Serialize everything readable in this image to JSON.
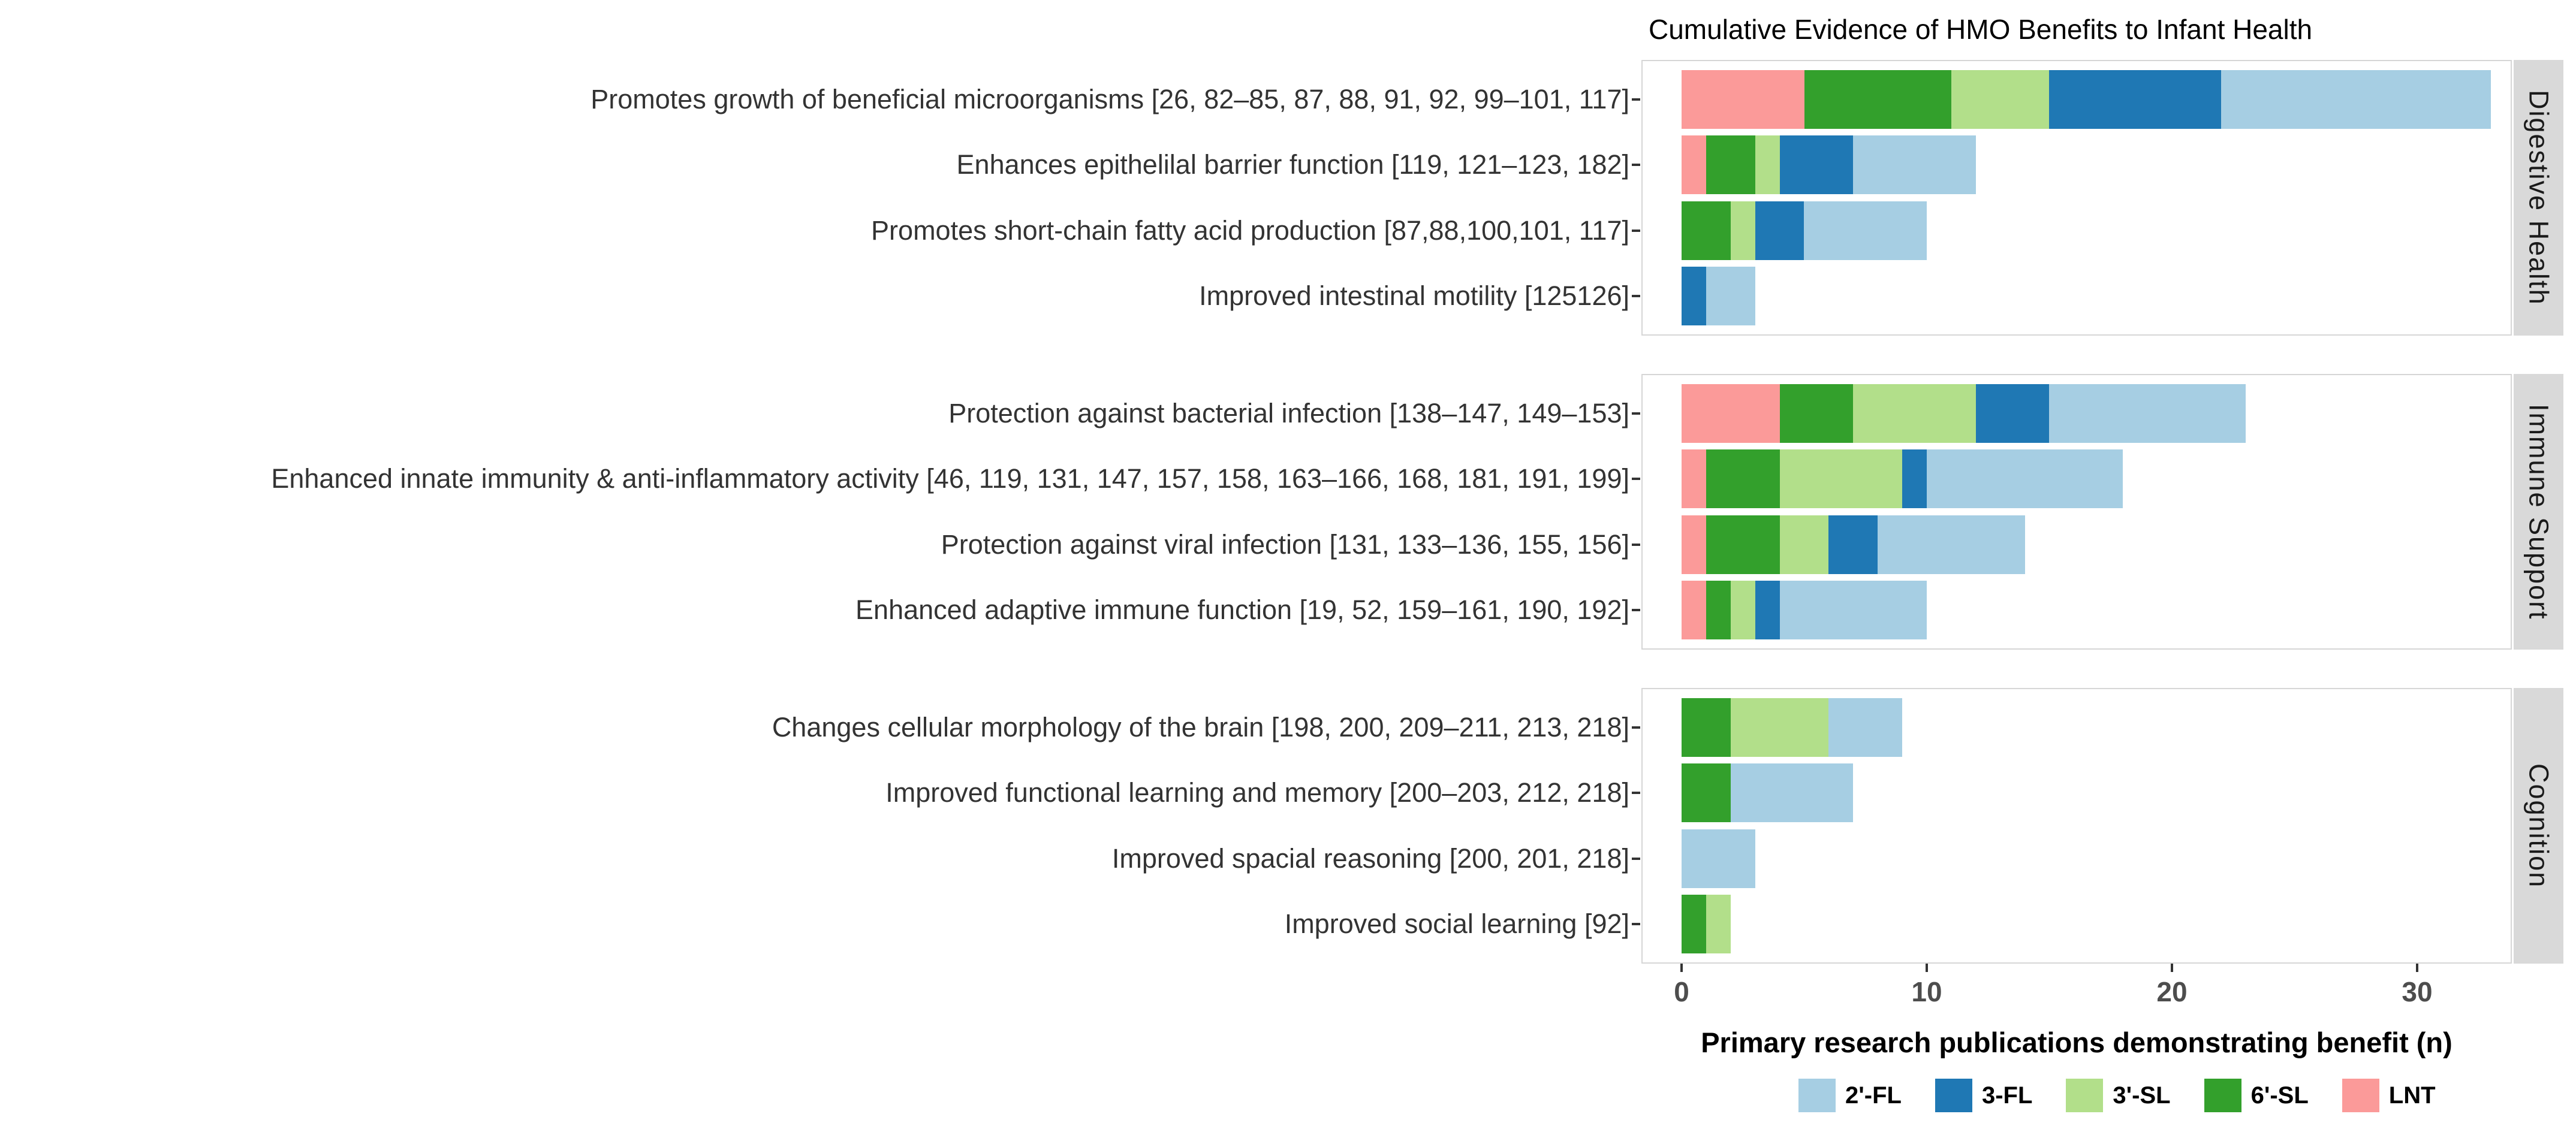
{
  "title": "Cumulative Evidence of HMO Benefits to Infant Health",
  "chart_data": {
    "type": "bar",
    "orientation": "horizontal",
    "stacked": true,
    "title": "Cumulative Evidence of HMO Benefits to Infant Health",
    "xlabel": "Primary research publications demonstrating benefit (n)",
    "ylabel": "",
    "xticks": [
      0,
      10,
      20,
      30
    ],
    "xlim": [
      0,
      33.9
    ],
    "grid": false,
    "legend_position": "bottom",
    "legend": [
      {
        "label": "2'-FL",
        "color": "#A6CEE3"
      },
      {
        "label": "3-FL",
        "color": "#1F78B4"
      },
      {
        "label": "3'-SL",
        "color": "#B2DF8A"
      },
      {
        "label": "6'-SL",
        "color": "#33A02C"
      },
      {
        "label": "LNT",
        "color": "#FB9A99"
      }
    ],
    "stack_order_left_to_right": [
      "LNT",
      "6'-SL",
      "3'-SL",
      "3-FL",
      "2'-FL"
    ],
    "colors": {
      "2'-FL": "#A6CEE3",
      "3-FL": "#1F78B4",
      "3'-SL": "#B2DF8A",
      "6'-SL": "#33A02C",
      "LNT": "#FB9A99"
    },
    "panels": [
      {
        "facet": "Digestive Health",
        "rows": [
          {
            "label": "Promotes growth of beneficial microorganisms [26, 82–85, 87, 88, 91, 92, 99–101, 117]",
            "values": {
              "LNT": 5,
              "6'-SL": 6,
              "3'-SL": 4,
              "3-FL": 7,
              "2'-FL": 11
            },
            "total": 33
          },
          {
            "label": "Enhances epithelilal barrier function [119, 121–123, 182]",
            "values": {
              "LNT": 1,
              "6'-SL": 2,
              "3'-SL": 1,
              "3-FL": 3,
              "2'-FL": 5
            },
            "total": 12
          },
          {
            "label": "Promotes short-chain fatty acid production [87,88,100,101, 117]",
            "values": {
              "LNT": 0,
              "6'-SL": 2,
              "3'-SL": 1,
              "3-FL": 2,
              "2'-FL": 5
            },
            "total": 10
          },
          {
            "label": "Improved intestinal motility [125126]",
            "values": {
              "LNT": 0,
              "6'-SL": 0,
              "3'-SL": 0,
              "3-FL": 1,
              "2'-FL": 2
            },
            "total": 3
          }
        ]
      },
      {
        "facet": "Immune Support",
        "rows": [
          {
            "label": "Protection against bacterial infection [138–147, 149–153]",
            "values": {
              "LNT": 4,
              "6'-SL": 3,
              "3'-SL": 5,
              "3-FL": 3,
              "2'-FL": 8
            },
            "total": 23
          },
          {
            "label": "Enhanced innate immunity & anti-inflammatory activity [46, 119, 131, 147, 157, 158, 163–166, 168, 181,  191, 199]",
            "values": {
              "LNT": 1,
              "6'-SL": 3,
              "3'-SL": 5,
              "3-FL": 1,
              "2'-FL": 8
            },
            "total": 18
          },
          {
            "label": "Protection against viral infection [131, 133–136, 155, 156]",
            "values": {
              "LNT": 1,
              "6'-SL": 3,
              "3'-SL": 2,
              "3-FL": 2,
              "2'-FL": 6
            },
            "total": 14
          },
          {
            "label": "Enhanced adaptive immune function [19, 52, 159–161, 190, 192]",
            "values": {
              "LNT": 1,
              "6'-SL": 1,
              "3'-SL": 1,
              "3-FL": 1,
              "2'-FL": 6
            },
            "total": 10
          }
        ]
      },
      {
        "facet": "Cognition",
        "rows": [
          {
            "label": "Changes cellular morphology of the brain [198, 200, 209–211, 213, 218]",
            "values": {
              "LNT": 0,
              "6'-SL": 2,
              "3'-SL": 4,
              "3-FL": 0,
              "2'-FL": 3
            },
            "total": 9
          },
          {
            "label": "Improved functional learning and memory [200–203, 212, 218]",
            "values": {
              "LNT": 0,
              "6'-SL": 2,
              "3'-SL": 0,
              "3-FL": 0,
              "2'-FL": 5
            },
            "total": 7
          },
          {
            "label": "Improved spacial reasoning [200, 201, 218]",
            "values": {
              "LNT": 0,
              "6'-SL": 0,
              "3'-SL": 0,
              "3-FL": 0,
              "2'-FL": 3
            },
            "total": 3
          },
          {
            "label": "Improved social learning [92]",
            "values": {
              "LNT": 0,
              "6'-SL": 1,
              "3'-SL": 1,
              "3-FL": 0,
              "2'-FL": 0
            },
            "total": 2
          }
        ]
      }
    ],
    "style_colors": {
      "strip_background": "#d9d9d9",
      "panel_border": "#d6d6d6",
      "axis_tick": "#333333",
      "axis_text": "#4d4d4d"
    }
  }
}
